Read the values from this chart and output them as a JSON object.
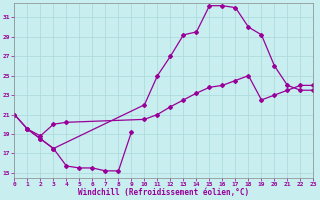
{
  "xlabel": "Windchill (Refroidissement éolien,°C)",
  "xlim": [
    0,
    23
  ],
  "ylim": [
    14.5,
    32.5
  ],
  "xticks": [
    0,
    1,
    2,
    3,
    4,
    5,
    6,
    7,
    8,
    9,
    10,
    11,
    12,
    13,
    14,
    15,
    16,
    17,
    18,
    19,
    20,
    21,
    22,
    23
  ],
  "yticks": [
    15,
    17,
    19,
    21,
    23,
    25,
    27,
    29,
    31
  ],
  "bg_color": "#c8eef0",
  "grid_color": "#aad8d8",
  "line_color": "#990099",
  "curve1_x": [
    0,
    1,
    2,
    3,
    4,
    5,
    6,
    7,
    8,
    9
  ],
  "curve1_y": [
    21.0,
    19.5,
    18.5,
    17.5,
    15.7,
    15.5,
    15.5,
    15.2,
    15.2,
    19.2
  ],
  "curve2_x": [
    0,
    1,
    2,
    3,
    10,
    11,
    12,
    13,
    14,
    15,
    16,
    17,
    18,
    19,
    20,
    21,
    22,
    23
  ],
  "curve2_y": [
    21.0,
    19.5,
    18.5,
    17.5,
    22.0,
    25.0,
    27.0,
    29.2,
    29.5,
    32.2,
    32.2,
    32.0,
    30.0,
    29.2,
    26.0,
    24.0,
    23.5,
    23.5
  ],
  "curve3_x": [
    1,
    2,
    3,
    4,
    10,
    11,
    12,
    13,
    14,
    15,
    16,
    17,
    18,
    19,
    20,
    21,
    22,
    23
  ],
  "curve3_y": [
    19.5,
    18.8,
    20.0,
    20.2,
    20.5,
    21.0,
    21.8,
    22.5,
    23.2,
    23.8,
    24.0,
    24.5,
    25.0,
    22.5,
    23.0,
    23.5,
    24.0,
    24.0
  ]
}
